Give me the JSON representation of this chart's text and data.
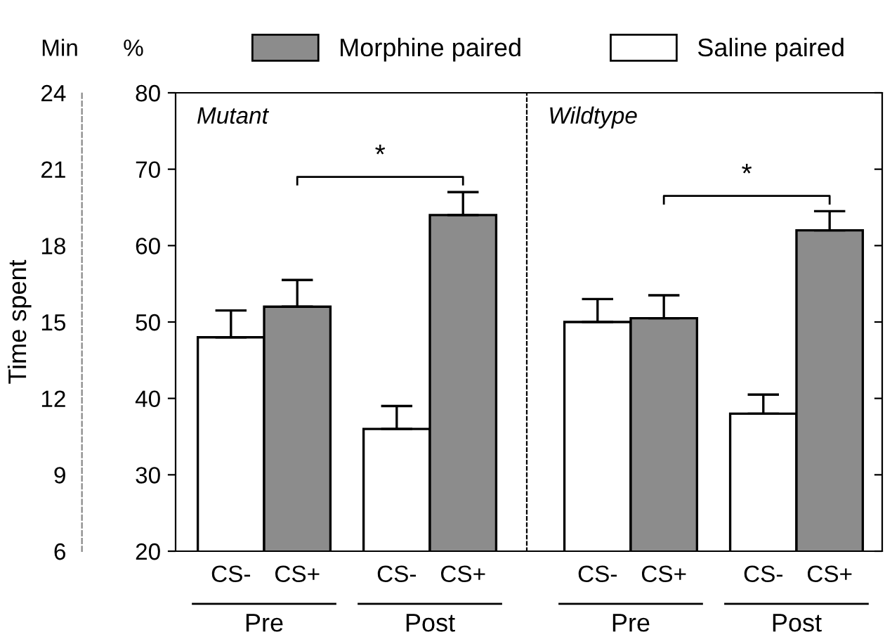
{
  "chart_data": [
    {
      "type": "bar",
      "title": "Mutant",
      "ylabel": "%",
      "y2label": "Min",
      "categories": [
        "Pre",
        "Post"
      ],
      "series": [
        {
          "name": "Saline paired",
          "color": "#ffffff",
          "values": [
            48,
            36
          ],
          "errors": [
            3.5,
            3
          ]
        },
        {
          "name": "Morphine paired",
          "color": "#8c8c8c",
          "values": [
            52,
            64
          ],
          "errors": [
            3.5,
            3
          ]
        }
      ],
      "ylim": [
        20,
        80
      ],
      "yticks": [
        20,
        30,
        40,
        50,
        60,
        70,
        80
      ],
      "y2lim": [
        6,
        24
      ],
      "y2ticks": [
        6,
        9,
        12,
        15,
        18,
        21,
        24
      ],
      "annotations": [
        "CS-",
        "CS+",
        "*",
        "Time spent"
      ],
      "legend": "top",
      "grid": false
    },
    {
      "type": "bar",
      "title": "Wildtype",
      "categories": [
        "Pre",
        "Post"
      ],
      "series": [
        {
          "color": "#ffffff",
          "values": [
            50,
            38
          ],
          "errors": [
            3,
            2.5
          ]
        },
        {
          "color": "#8c8c8c",
          "values": [
            50.5,
            62
          ],
          "errors": [
            3,
            2.5
          ]
        }
      ],
      "ylim": [
        20,
        80
      ],
      "yticks": [
        20,
        30,
        40,
        50,
        60,
        70,
        80
      ],
      "tick_labels": "x",
      "annotations": [
        "CS-",
        "CS+",
        "*"
      ],
      "legend": false,
      "grid": false
    }
  ]
}
